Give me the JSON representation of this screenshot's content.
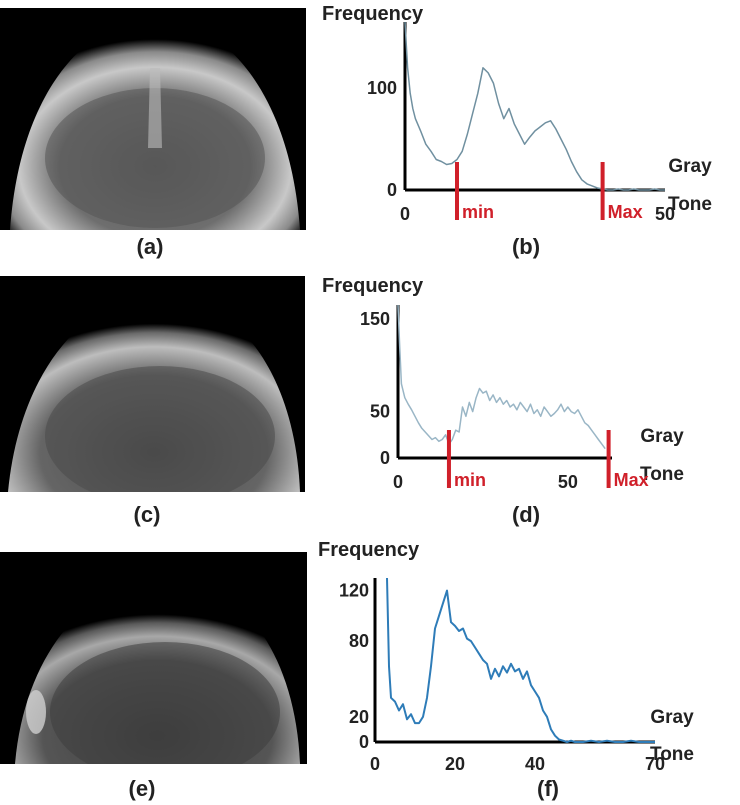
{
  "panels": {
    "a": "(a)",
    "b": "(b)",
    "c": "(c)",
    "d": "(d)",
    "e": "(e)",
    "f": "(f)"
  },
  "chart_data": [
    {
      "type": "line",
      "panel": "(b)",
      "ylabel": "Frequency",
      "xlabel": [
        "Gray",
        "Tone"
      ],
      "xlim": [
        0,
        50
      ],
      "ylim": [
        0,
        165
      ],
      "xticks": [
        0,
        50
      ],
      "yticks": [
        0,
        100
      ],
      "markers": [
        {
          "label": "min",
          "x": 10
        },
        {
          "label": "Max",
          "x": 38
        }
      ],
      "line_color": "#7090a0",
      "x": [
        0,
        0.5,
        1,
        1.5,
        2,
        3,
        4,
        5,
        6,
        7,
        8,
        9,
        10,
        11,
        12,
        13,
        14,
        15,
        16,
        17,
        18,
        19,
        20,
        21,
        22,
        23,
        24,
        25,
        26,
        27,
        28,
        29,
        30,
        31,
        32,
        33,
        34,
        35,
        36,
        37,
        38,
        39,
        40,
        41,
        42,
        43,
        44,
        45,
        46,
        47,
        48,
        49,
        50
      ],
      "y": [
        165,
        120,
        95,
        80,
        70,
        58,
        45,
        38,
        30,
        28,
        25,
        26,
        30,
        38,
        55,
        75,
        95,
        120,
        115,
        105,
        85,
        70,
        80,
        65,
        55,
        45,
        52,
        58,
        62,
        66,
        68,
        60,
        50,
        40,
        28,
        18,
        10,
        6,
        4,
        2,
        1,
        0,
        0,
        1,
        0,
        0,
        1,
        0,
        0,
        0,
        1,
        0,
        0
      ]
    },
    {
      "type": "line",
      "panel": "(d)",
      "ylabel": "Frequency",
      "xlabel": [
        "Gray",
        "Tone"
      ],
      "xlim": [
        0,
        63
      ],
      "ylim": [
        0,
        165
      ],
      "xticks": [
        0,
        50
      ],
      "yticks": [
        0,
        50,
        150
      ],
      "markers": [
        {
          "label": "min",
          "x": 15
        },
        {
          "label": "Max",
          "x": 62
        }
      ],
      "line_color": "#9ab6c6",
      "x": [
        0,
        0.5,
        1,
        2,
        3,
        4,
        5,
        6,
        7,
        8,
        9,
        10,
        11,
        12,
        13,
        14,
        15,
        16,
        17,
        18,
        19,
        20,
        21,
        22,
        23,
        24,
        25,
        26,
        27,
        28,
        29,
        30,
        31,
        32,
        33,
        34,
        35,
        36,
        37,
        38,
        39,
        40,
        41,
        42,
        43,
        44,
        45,
        46,
        47,
        48,
        49,
        50,
        51,
        52,
        53,
        54,
        55,
        56,
        57,
        58,
        59,
        60,
        61
      ],
      "y": [
        165,
        120,
        80,
        65,
        58,
        52,
        45,
        38,
        32,
        28,
        24,
        20,
        22,
        18,
        20,
        25,
        15,
        20,
        30,
        28,
        55,
        45,
        60,
        50,
        65,
        75,
        70,
        72,
        62,
        68,
        60,
        65,
        58,
        62,
        55,
        58,
        52,
        60,
        55,
        50,
        58,
        48,
        52,
        45,
        55,
        50,
        45,
        48,
        52,
        58,
        50,
        55,
        50,
        48,
        52,
        45,
        38,
        35,
        30,
        25,
        20,
        15,
        10
      ]
    },
    {
      "type": "line",
      "panel": "(f)",
      "ylabel": "Frequency",
      "xlabel": [
        "Gray",
        "Tone"
      ],
      "xlim": [
        0,
        70
      ],
      "ylim": [
        0,
        130
      ],
      "xticks": [
        0,
        20,
        40,
        70
      ],
      "yticks": [
        0,
        20,
        80,
        120
      ],
      "markers": [],
      "line_color": "#2e7cb8",
      "x": [
        3,
        3.5,
        4,
        5,
        6,
        7,
        8,
        9,
        10,
        11,
        12,
        13,
        14,
        15,
        16,
        17,
        18,
        19,
        20,
        21,
        22,
        23,
        24,
        25,
        26,
        27,
        28,
        29,
        30,
        31,
        32,
        33,
        34,
        35,
        36,
        37,
        38,
        39,
        40,
        41,
        42,
        43,
        44,
        45,
        46,
        47,
        48,
        49,
        50,
        52,
        54,
        56,
        58,
        60,
        62,
        64,
        66,
        68,
        70
      ],
      "y": [
        130,
        60,
        35,
        32,
        25,
        30,
        18,
        22,
        15,
        15,
        20,
        35,
        60,
        90,
        100,
        110,
        120,
        95,
        92,
        88,
        90,
        82,
        80,
        75,
        70,
        65,
        62,
        50,
        58,
        52,
        60,
        55,
        62,
        56,
        58,
        50,
        56,
        45,
        40,
        35,
        25,
        20,
        10,
        5,
        2,
        1,
        0,
        1,
        0,
        0,
        1,
        0,
        1,
        0,
        0,
        1,
        0,
        0,
        0
      ]
    }
  ]
}
